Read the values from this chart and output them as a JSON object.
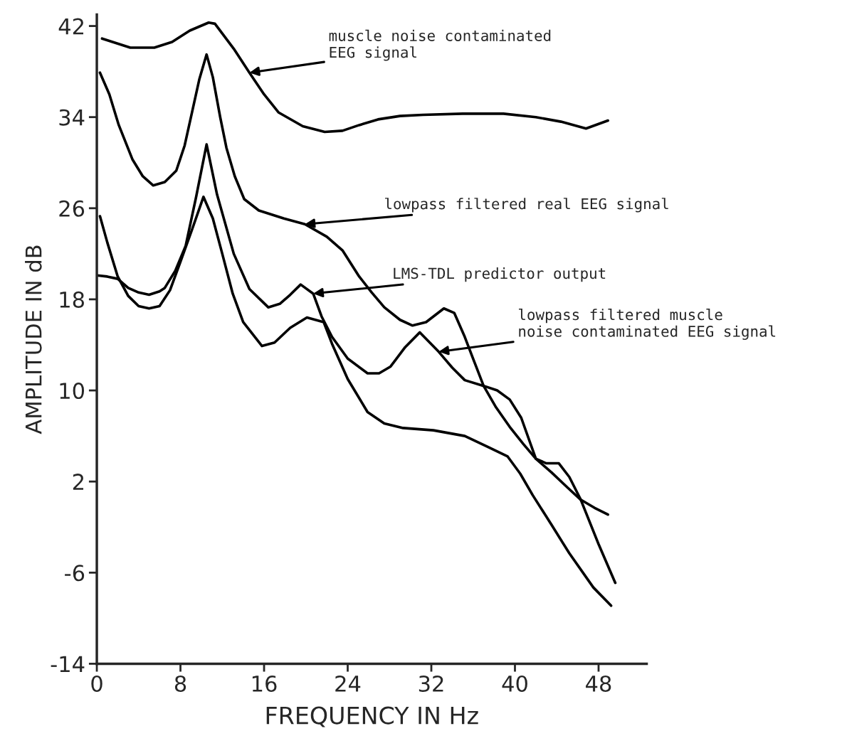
{
  "chart_data": {
    "type": "line",
    "xlabel": "FREQUENCY IN Hz",
    "ylabel": "AMPLITUDE IN dB",
    "xlim": [
      0,
      52.6
    ],
    "ylim": [
      -14,
      43
    ],
    "xticks": [
      0,
      8,
      16,
      24,
      32,
      40,
      48
    ],
    "yticks": [
      -14,
      -6,
      2,
      10,
      18,
      26,
      34,
      42
    ],
    "grid": false,
    "legend": false,
    "marker": "none",
    "line_style": "solid",
    "series": [
      {
        "color": "#000000",
        "x": [
          0.5,
          3.2,
          5.5,
          7.2,
          8.9,
          10.7,
          11.3,
          13.1,
          14.6,
          16,
          17.4,
          19.7,
          21.8,
          23.5,
          25.1,
          26.9,
          29,
          31.2,
          35,
          38.9,
          42,
          44.4,
          46.8,
          48.9
        ],
        "values": [
          40.9,
          40.1,
          40.1,
          40.6,
          41.6,
          42.3,
          42.2,
          40.0,
          37.9,
          36.0,
          34.4,
          33.2,
          32.7,
          32.8,
          33.3,
          33.8,
          34.1,
          34.2,
          34.3,
          34.3,
          34.0,
          33.6,
          33.0,
          33.7
        ]
      },
      {
        "color": "#000000",
        "x": [
          0.3,
          1.2,
          2.1,
          3.4,
          4.4,
          5.4,
          6.5,
          7.6,
          8.4,
          9.1,
          9.8,
          10.5,
          11.1,
          11.8,
          12.4,
          13.2,
          14.1,
          15.5,
          17.9,
          19.9,
          22.0,
          23.5,
          25.1,
          26.3,
          27.5,
          29,
          30.2,
          31.5,
          33.2,
          34.2,
          35.2,
          36.2,
          37.0,
          38.2,
          39.5,
          40.8,
          42.0,
          43.5,
          45,
          46.3,
          47.6,
          48.9
        ],
        "values": [
          37.9,
          36.0,
          33.3,
          30.3,
          28.8,
          28.0,
          28.3,
          29.3,
          31.5,
          34.4,
          37.3,
          39.5,
          37.5,
          34.0,
          31.3,
          28.8,
          26.8,
          25.8,
          25.1,
          24.6,
          23.5,
          22.3,
          20.0,
          18.6,
          17.3,
          16.2,
          15.7,
          16.0,
          17.2,
          16.8,
          14.7,
          12.3,
          10.4,
          8.5,
          6.8,
          5.3,
          4.0,
          2.8,
          1.5,
          0.4,
          -0.3,
          -0.9
        ]
      },
      {
        "color": "#000000",
        "x": [
          0,
          1,
          2,
          3,
          4,
          5,
          6,
          6.5,
          7.5,
          8.5,
          9.5,
          10.5,
          11.5,
          13.1,
          14.6,
          16.4,
          17.5,
          18.5,
          19.5,
          20.7,
          21.5,
          22.5,
          24,
          25.9,
          27,
          28.1,
          29.5,
          30.9,
          32.7,
          34,
          35.2,
          37,
          38.3,
          39.5,
          40.6,
          42,
          43,
          44.2,
          45.2,
          46.3,
          48,
          49.6
        ],
        "values": [
          20.1,
          20.0,
          19.8,
          19.0,
          18.6,
          18.4,
          18.7,
          19.0,
          20.5,
          22.7,
          27.0,
          31.6,
          27.2,
          22.0,
          18.9,
          17.3,
          17.6,
          18.4,
          19.3,
          18.5,
          16.5,
          14.7,
          12.8,
          11.5,
          11.5,
          12.1,
          13.8,
          15.1,
          13.4,
          12.0,
          10.9,
          10.4,
          10.0,
          9.2,
          7.6,
          4.0,
          3.6,
          3.6,
          2.4,
          0.4,
          -3.5,
          -6.9
        ]
      },
      {
        "color": "#000000",
        "x": [
          0.3,
          1,
          2,
          3,
          4,
          5,
          6,
          7,
          8,
          9.1,
          10.2,
          11.1,
          12,
          13,
          14,
          15.8,
          17,
          18.5,
          20.1,
          21.7,
          22.5,
          24,
          25.9,
          27.5,
          29.3,
          32.2,
          35.2,
          37.5,
          39.3,
          40.5,
          41.7,
          43.5,
          45.2,
          47.5,
          49.2
        ],
        "values": [
          25.3,
          23.0,
          20.0,
          18.3,
          17.4,
          17.2,
          17.4,
          18.8,
          21.3,
          24.1,
          27.0,
          25.1,
          22.0,
          18.5,
          16.0,
          13.9,
          14.2,
          15.5,
          16.4,
          16.0,
          14.1,
          11.0,
          8.1,
          7.1,
          6.7,
          6.5,
          6.0,
          5.0,
          4.2,
          2.7,
          0.8,
          -1.8,
          -4.3,
          -7.3,
          -8.9
        ]
      }
    ],
    "annotations": [
      {
        "text": "muscle noise contaminated\nEEG signal",
        "x": 14.6,
        "y": 37.9
      },
      {
        "text": "lowpass filtered real EEG signal",
        "x": 19.9,
        "y": 24.6
      },
      {
        "text": "LMS-TDL predictor output",
        "x": 20.7,
        "y": 18.5
      },
      {
        "text": "lowpass filtered muscle\nnoise contaminated EEG signal",
        "x": 32.7,
        "y": 13.4
      }
    ]
  }
}
